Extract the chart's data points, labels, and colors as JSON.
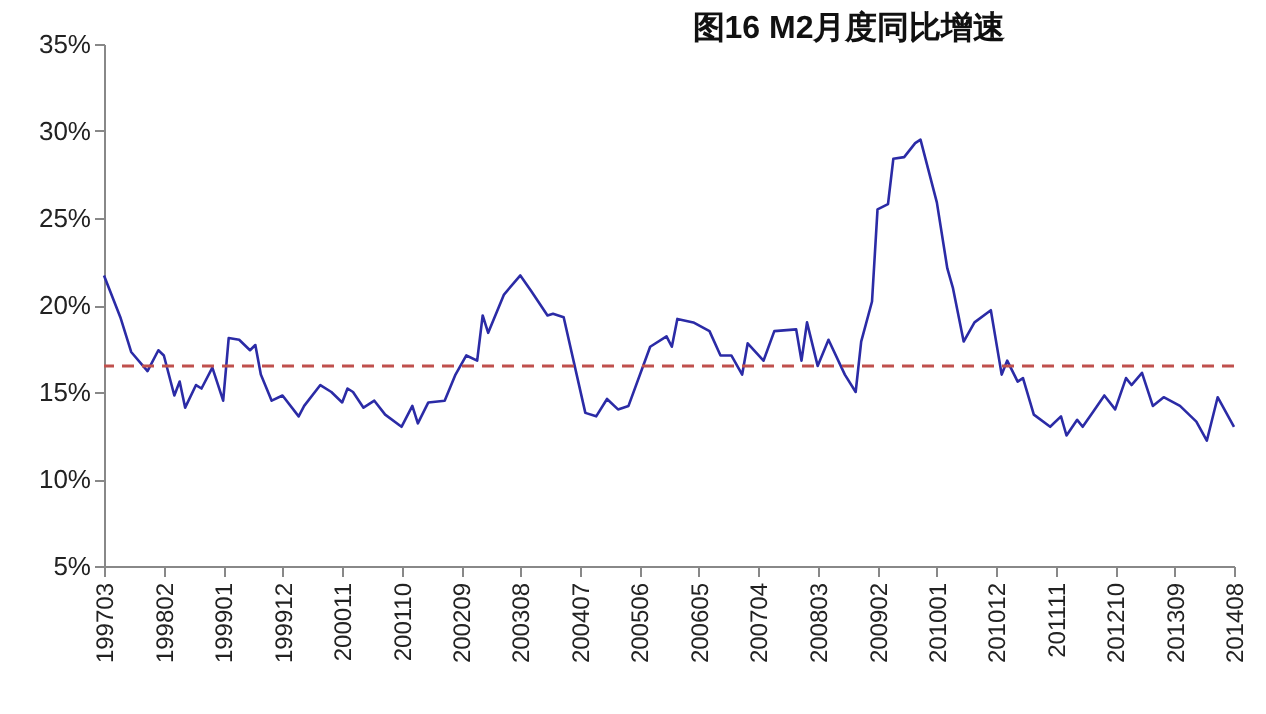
{
  "chart_data": {
    "type": "line",
    "title": "图16  M2月度同比增速",
    "x": [
      "1997-03",
      "1997-06",
      "1997-08",
      "1997-11",
      "1998-01",
      "1998-02",
      "1998-04",
      "1998-05",
      "1998-06",
      "1998-08",
      "1998-09",
      "1998-11",
      "1999-01",
      "1999-02",
      "1999-04",
      "1999-06",
      "1999-07",
      "1999-08",
      "1999-10",
      "1999-12",
      "2000-03",
      "2000-04",
      "2000-07",
      "2000-09",
      "2000-11",
      "2000-12",
      "2001-01",
      "2001-03",
      "2001-05",
      "2001-07",
      "2001-10",
      "2001-12",
      "2002-01",
      "2002-03",
      "2002-06",
      "2002-08",
      "2002-10",
      "2002-12",
      "2003-01",
      "2003-02",
      "2003-05",
      "2003-08",
      "2003-10",
      "2004-01",
      "2004-02",
      "2004-04",
      "2004-08",
      "2004-10",
      "2004-12",
      "2005-02",
      "2005-04",
      "2005-08",
      "2005-11",
      "2005-12",
      "2006-01",
      "2006-04",
      "2006-07",
      "2006-09",
      "2006-11",
      "2007-01",
      "2007-02",
      "2007-05",
      "2007-07",
      "2007-11",
      "2007-12",
      "2008-01",
      "2008-03",
      "2008-05",
      "2008-08",
      "2008-10",
      "2008-11",
      "2009-01",
      "2009-02",
      "2009-04",
      "2009-05",
      "2009-07",
      "2009-09",
      "2009-10",
      "2010-01",
      "2010-03",
      "2010-04",
      "2010-06",
      "2010-08",
      "2010-11",
      "2011-01",
      "2011-02",
      "2011-04",
      "2011-05",
      "2011-07",
      "2011-10",
      "2011-12",
      "2012-01",
      "2012-03",
      "2012-04",
      "2012-06",
      "2012-08",
      "2012-10",
      "2012-12",
      "2013-01",
      "2013-03",
      "2013-05",
      "2013-07",
      "2013-10",
      "2014-01",
      "2014-03",
      "2014-05",
      "2014-08"
    ],
    "series": [
      {
        "color": "#2b2ba6",
        "values": [
          21.7,
          19.3,
          17.3,
          16.2,
          17.4,
          17.1,
          14.8,
          15.6,
          14.1,
          15.4,
          15.2,
          16.4,
          14.5,
          18.1,
          18.0,
          17.4,
          17.7,
          16.0,
          14.5,
          14.8,
          13.6,
          14.2,
          15.4,
          15.0,
          14.4,
          15.2,
          15.0,
          14.1,
          14.5,
          13.7,
          13.0,
          14.2,
          13.2,
          14.4,
          14.5,
          16.0,
          17.1,
          16.8,
          19.4,
          18.4,
          20.6,
          21.7,
          20.8,
          19.4,
          19.5,
          19.3,
          13.8,
          13.6,
          14.6,
          14.0,
          14.2,
          17.6,
          18.2,
          17.6,
          19.2,
          19.0,
          18.5,
          17.1,
          17.1,
          16.0,
          17.8,
          16.8,
          18.5,
          18.6,
          16.8,
          19.0,
          16.5,
          18.0,
          16.0,
          15.0,
          17.9,
          20.2,
          25.5,
          25.8,
          28.4,
          28.5,
          29.3,
          29.5,
          25.9,
          22.1,
          21.0,
          17.9,
          19.0,
          19.7,
          16.0,
          16.8,
          15.6,
          15.8,
          13.7,
          13.0,
          13.6,
          12.5,
          13.4,
          13.0,
          13.9,
          14.8,
          14.0,
          15.8,
          15.4,
          16.1,
          14.2,
          14.7,
          14.2,
          13.3,
          12.2,
          14.7,
          13.0
        ]
      }
    ],
    "xlim": [
      "1997-03",
      "2014-08"
    ],
    "xticks": [
      {
        "value": "1997-03",
        "label": "199703"
      },
      {
        "value": "1998-02",
        "label": "199802"
      },
      {
        "value": "1999-01",
        "label": "199901"
      },
      {
        "value": "1999-12",
        "label": "199912"
      },
      {
        "value": "2000-11",
        "label": "200011"
      },
      {
        "value": "2001-10",
        "label": "200110"
      },
      {
        "value": "2002-09",
        "label": "200209"
      },
      {
        "value": "2003-08",
        "label": "200308"
      },
      {
        "value": "2004-07",
        "label": "200407"
      },
      {
        "value": "2005-06",
        "label": "200506"
      },
      {
        "value": "2006-05",
        "label": "200605"
      },
      {
        "value": "2007-04",
        "label": "200704"
      },
      {
        "value": "2008-03",
        "label": "200803"
      },
      {
        "value": "2009-02",
        "label": "200902"
      },
      {
        "value": "2010-01",
        "label": "201001"
      },
      {
        "value": "2010-12",
        "label": "201012"
      },
      {
        "value": "2011-11",
        "label": "201111"
      },
      {
        "value": "2012-10",
        "label": "201210"
      },
      {
        "value": "2013-09",
        "label": "201309"
      },
      {
        "value": "2014-08",
        "label": "201408"
      }
    ],
    "ylim": [
      5,
      35
    ],
    "yticks": [
      {
        "value": 5,
        "label": "5%"
      },
      {
        "value": 10,
        "label": "10%"
      },
      {
        "value": 15,
        "label": "15%"
      },
      {
        "value": 20,
        "label": "20%"
      },
      {
        "value": 25,
        "label": "25%"
      },
      {
        "value": 30,
        "label": "30%"
      },
      {
        "value": 35,
        "label": "35%"
      }
    ],
    "ref_lines": [
      {
        "axis": "y",
        "value": 16.5,
        "color": "#c0504d",
        "line_style": "dashed"
      }
    ],
    "grid": false,
    "marker": "none",
    "line_style": "solid"
  }
}
